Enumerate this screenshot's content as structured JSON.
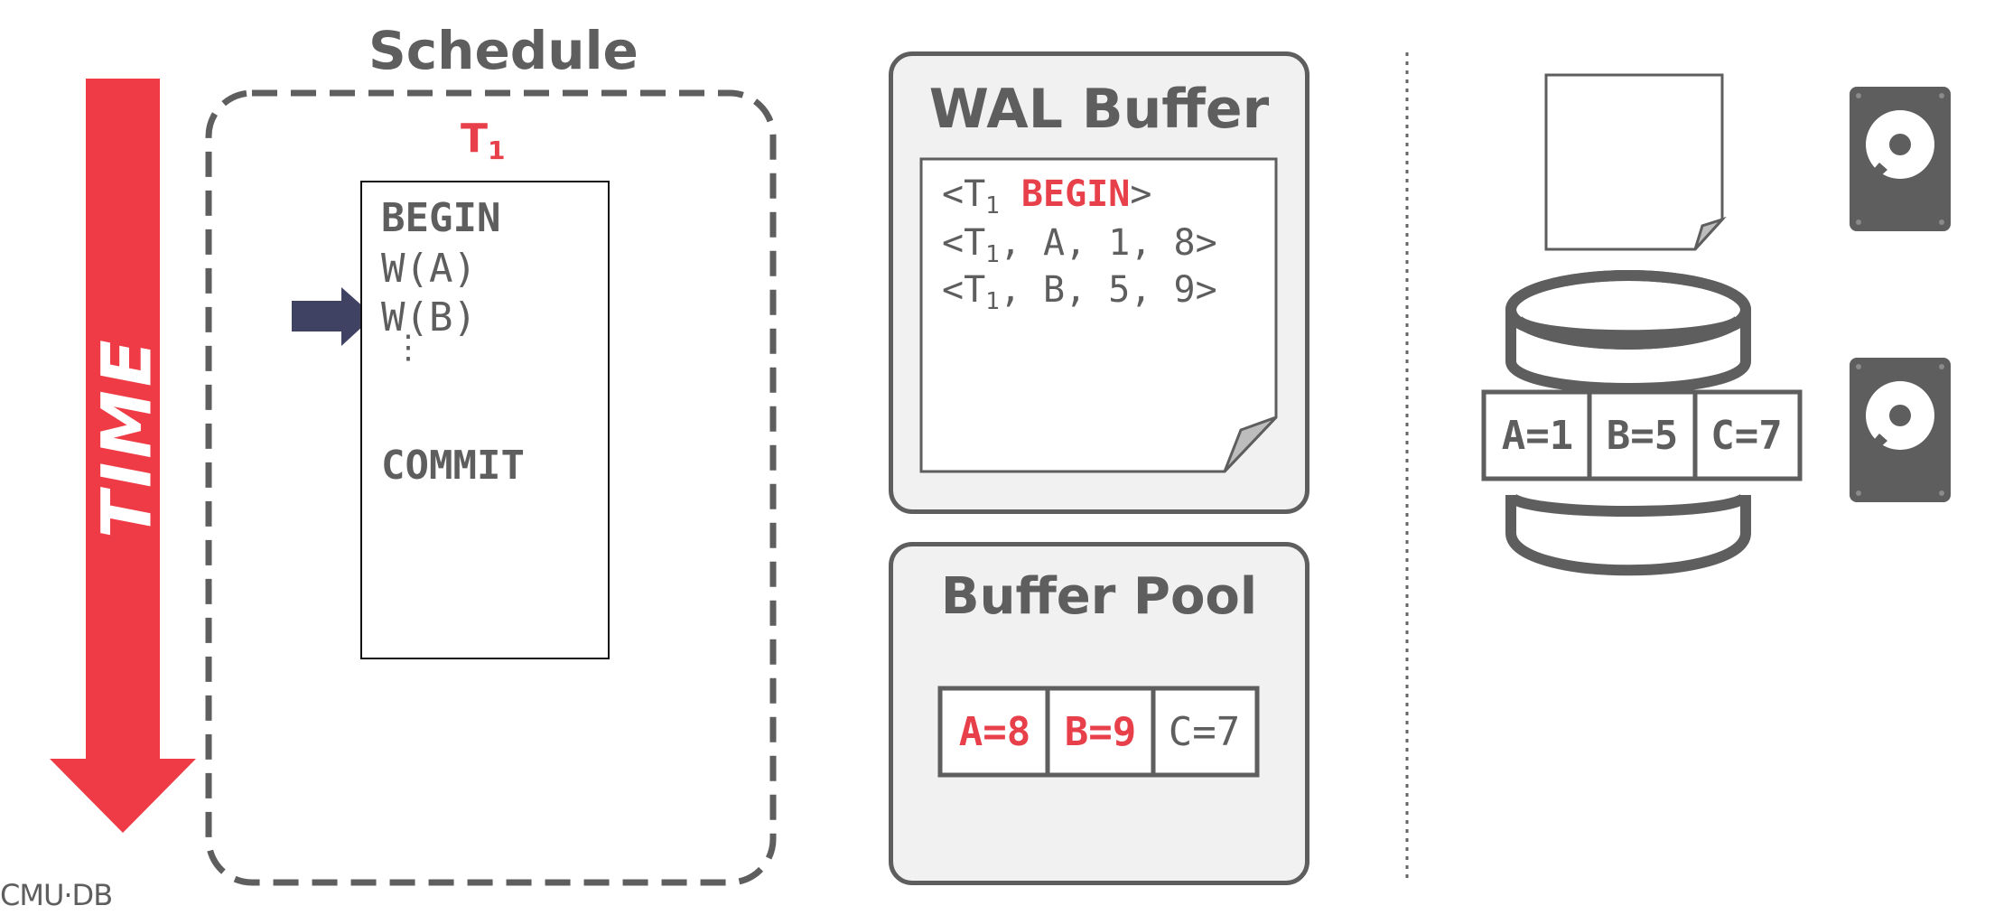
{
  "time_arrow": {
    "label": "TIME"
  },
  "schedule": {
    "title": "Schedule",
    "txn": {
      "name": "T",
      "sub": "1"
    },
    "ops": {
      "begin": "BEGIN",
      "wa": "W(A)",
      "wb": "W(B)",
      "dots": "⋮",
      "commit": "COMMIT"
    }
  },
  "wal_buffer": {
    "title": "WAL Buffer",
    "lines": [
      {
        "open": "<T",
        "sub": "1",
        "rest_pre": " ",
        "keyword": "BEGIN",
        "close": ">"
      },
      {
        "open": "<T",
        "sub": "1",
        "rest": ", A, 1, 8>"
      },
      {
        "open": "<T",
        "sub": "1",
        "rest": ", B, 5, 9>"
      }
    ]
  },
  "buffer_pool": {
    "title": "Buffer Pool",
    "cells": [
      "A=8",
      "B=9",
      "C=7"
    ]
  },
  "disk": {
    "cells": [
      "A=1",
      "B=5",
      "C=7"
    ]
  },
  "footer": {
    "logo": "CMU·DB"
  },
  "colors": {
    "accent_red": "#e8404a",
    "gray": "#5e5e5e",
    "arrow_navy": "#3f4262",
    "panel_bg": "#f1f1f1"
  }
}
